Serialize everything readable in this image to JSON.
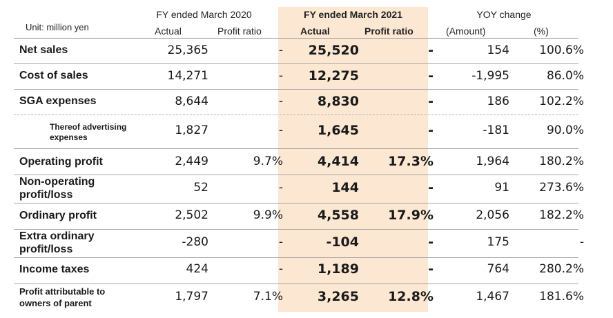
{
  "header": {
    "unit_label": "Unit: million yen",
    "fy2020_title": "FY ended March 2020",
    "fy2021_title": "FY ended March 2021",
    "yoy_title": "YOY change",
    "actual_label": "Actual",
    "profit_ratio_label": "Profit ratio",
    "amount_label": "(Amount)",
    "percent_label": "(%)"
  },
  "rows": [
    {
      "label_1": "Net sales",
      "label_2": "",
      "a2020": "25,365",
      "r2020": "-",
      "a2021": "25,520",
      "r2021": "-",
      "amount": "154",
      "pct": "100.6%"
    },
    {
      "label_1": "Cost of sales",
      "label_2": "",
      "a2020": "14,271",
      "r2020": "-",
      "a2021": "12,275",
      "r2021": "-",
      "amount": "-1,995",
      "pct": "86.0%"
    },
    {
      "label_1": "SGA expenses",
      "label_2": "",
      "a2020": "8,644",
      "r2020": "-",
      "a2021": "8,830",
      "r2021": "-",
      "amount": "186",
      "pct": "102.2%"
    },
    {
      "label_1": "Thereof advertising",
      "label_2": "expenses",
      "a2020": "1,827",
      "r2020": "-",
      "a2021": "1,645",
      "r2021": "-",
      "amount": "-181",
      "pct": "90.0%"
    },
    {
      "label_1": "Operating profit",
      "label_2": "",
      "a2020": "2,449",
      "r2020": "9.7%",
      "a2021": "4,414",
      "r2021": "17.3%",
      "amount": "1,964",
      "pct": "180.2%"
    },
    {
      "label_1": "Non-operating",
      "label_2": "profit/loss",
      "a2020": "52",
      "r2020": "-",
      "a2021": "144",
      "r2021": "-",
      "amount": "91",
      "pct": "273.6%"
    },
    {
      "label_1": "Ordinary profit",
      "label_2": "",
      "a2020": "2,502",
      "r2020": "9.9%",
      "a2021": "4,558",
      "r2021": "17.9%",
      "amount": "2,056",
      "pct": "182.2%"
    },
    {
      "label_1": "Extra ordinary",
      "label_2": "profit/loss",
      "a2020": "-280",
      "r2020": "-",
      "a2021": "-104",
      "r2021": "-",
      "amount": "175",
      "pct": "-"
    },
    {
      "label_1": "Income taxes",
      "label_2": "",
      "a2020": "424",
      "r2020": "-",
      "a2021": "1,189",
      "r2021": "-",
      "amount": "764",
      "pct": "280.2%"
    },
    {
      "label_1": "Profit attributable to",
      "label_2": "owners of parent",
      "a2020": "1,797",
      "r2020": "7.1%",
      "a2021": "3,265",
      "r2021": "12.8%",
      "amount": "1,467",
      "pct": "181.6%"
    }
  ]
}
